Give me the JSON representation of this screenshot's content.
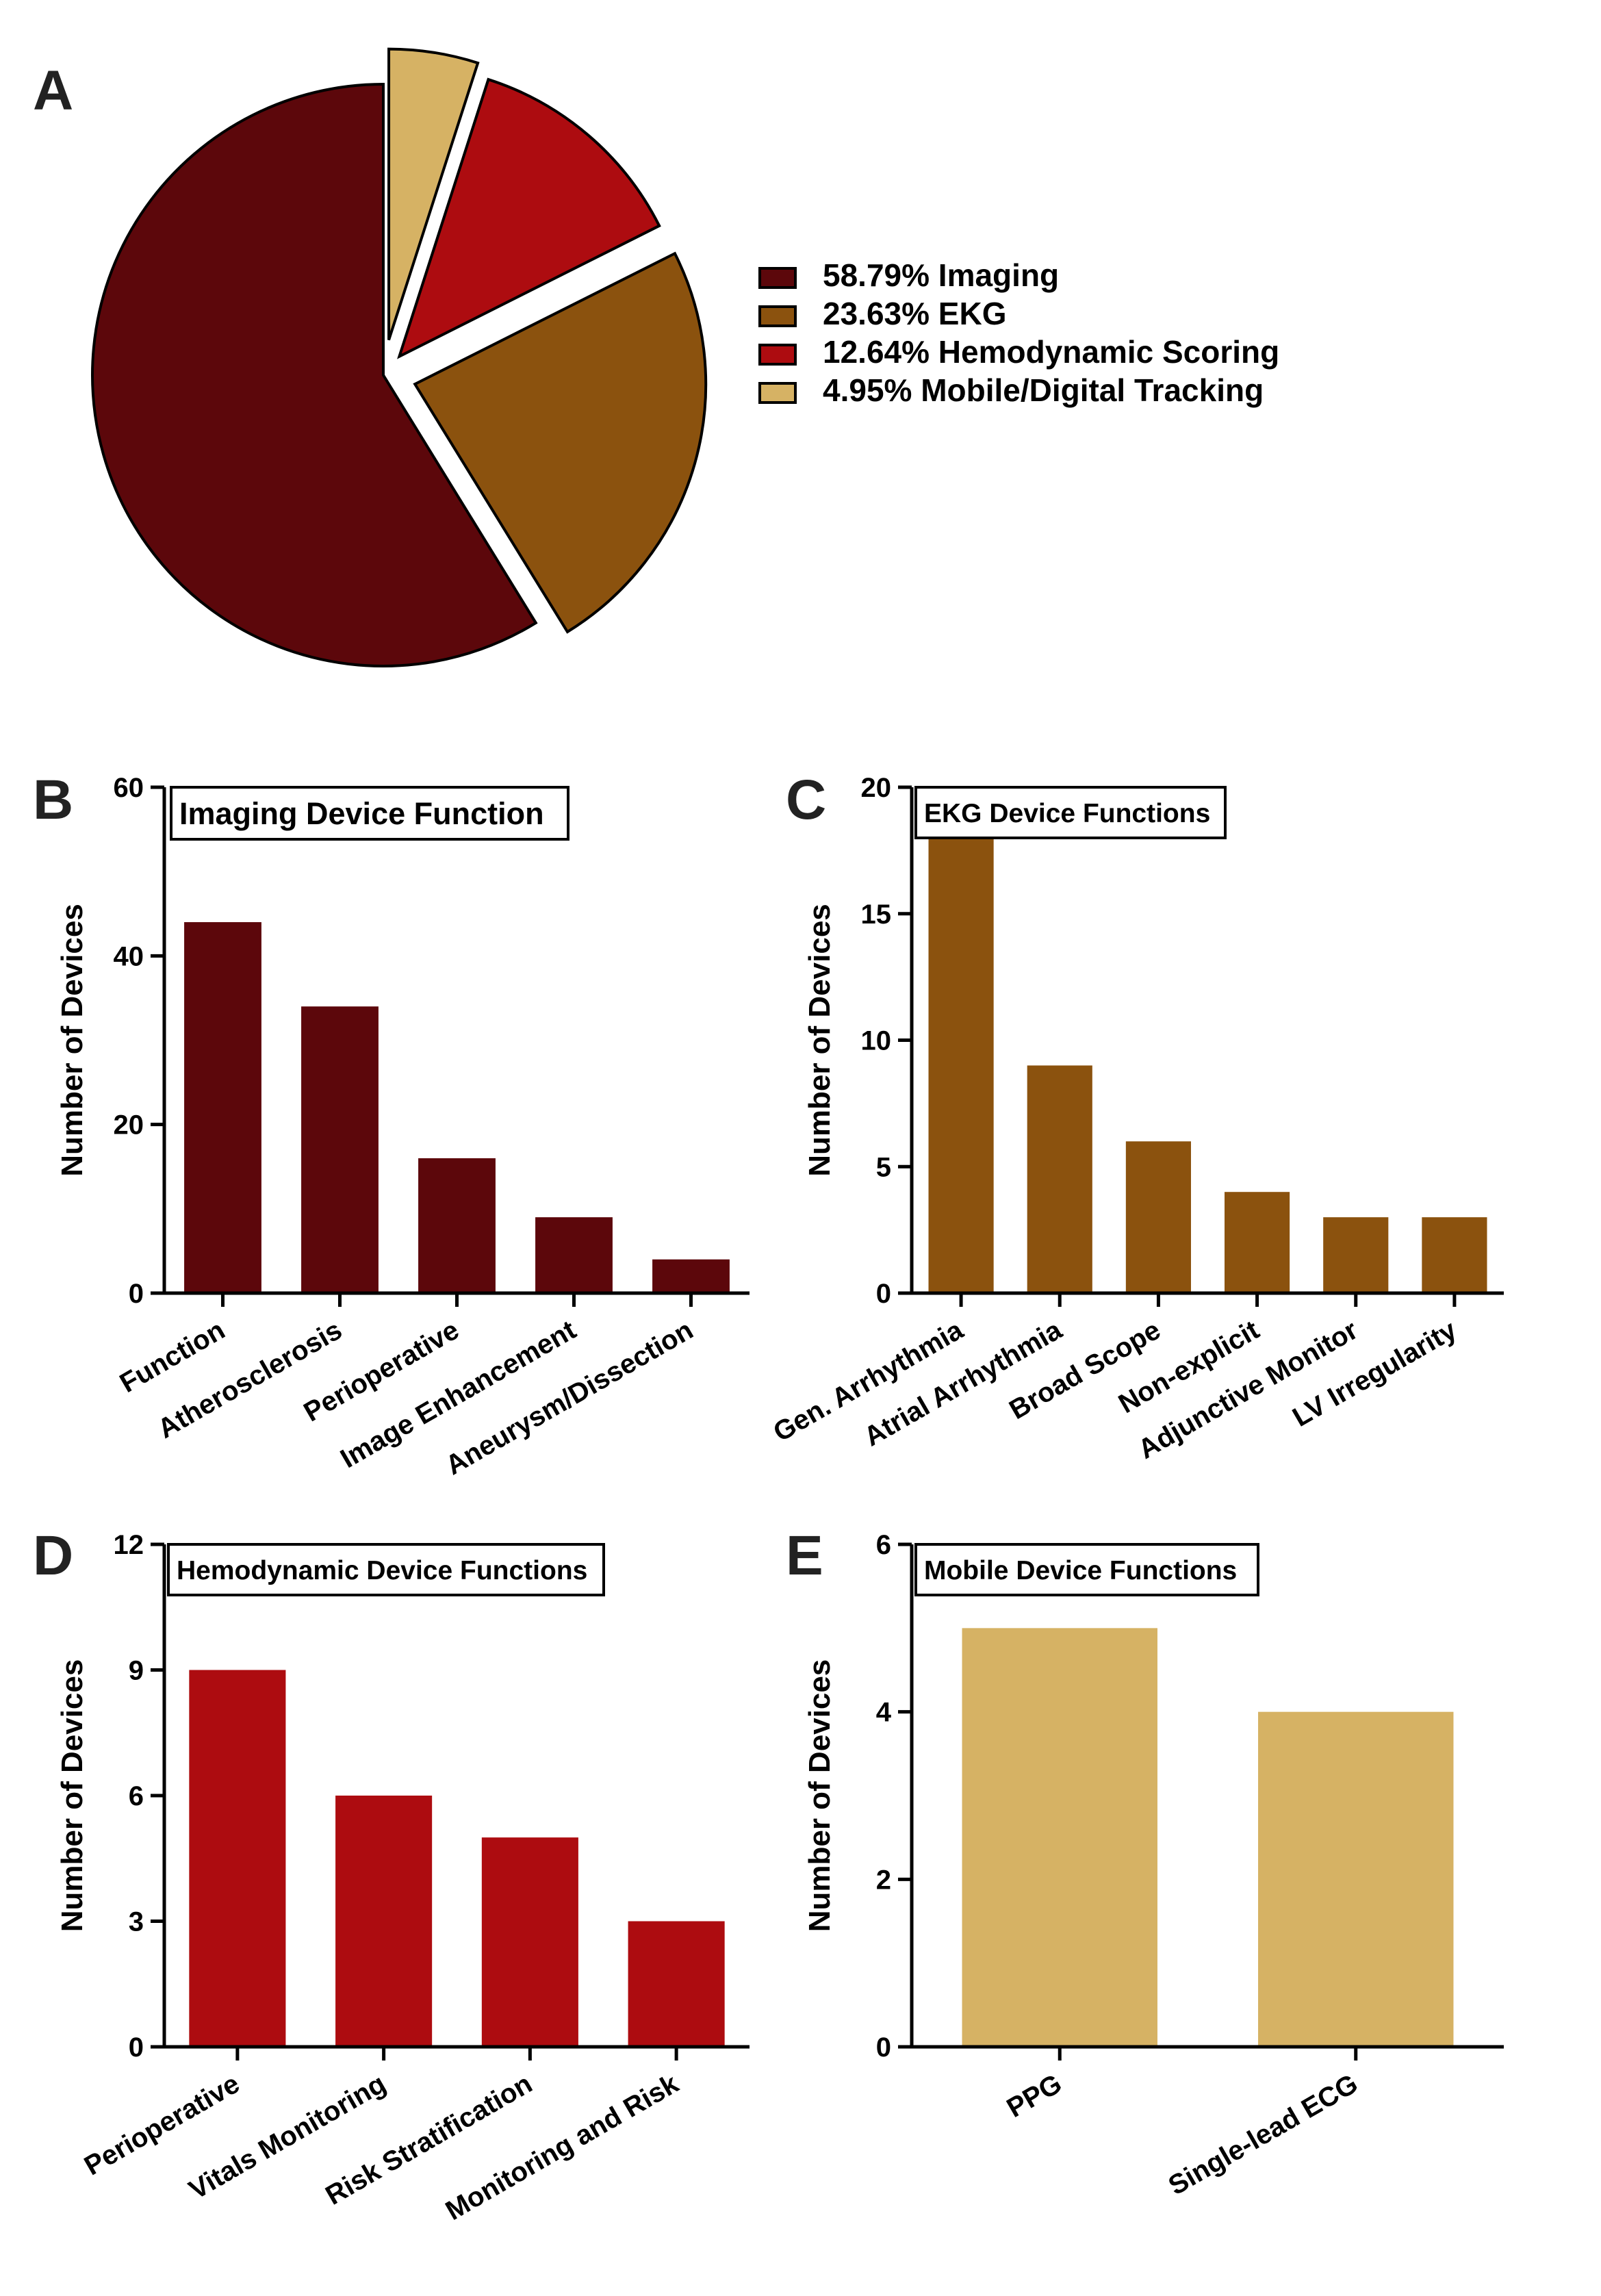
{
  "figure": {
    "panel_letters": [
      "A",
      "B",
      "C",
      "D",
      "E"
    ]
  },
  "chart_data": [
    {
      "panel": "A",
      "type": "pie",
      "title": "",
      "labels": [
        "Imaging",
        "EKG",
        "Hemodynamic Scoring",
        "Mobile/Digital Tracking"
      ],
      "values": [
        58.79,
        23.63,
        12.64,
        4.95
      ],
      "legend": [
        "58.79%  Imaging",
        "23.63%  EKG",
        "12.64%  Hemodynamic Scoring",
        "4.95%  Mobile/Digital Tracking"
      ],
      "colors": [
        "#5c070b",
        "#8b520e",
        "#ad0c10",
        "#d6b264"
      ],
      "legend_position": "right"
    },
    {
      "panel": "B",
      "type": "bar",
      "title": "Imaging Device Function",
      "ylabel": "Number of Devices",
      "xlabel": "",
      "categories": [
        "Function",
        "Atherosclerosis",
        "Perioperative",
        "Image Enhancement",
        "Aneurysm/Dissection"
      ],
      "values": [
        44,
        34,
        16,
        9,
        4
      ],
      "ylim": [
        0,
        60
      ],
      "yticks": [
        0,
        20,
        40,
        60
      ],
      "color": "#5c070b"
    },
    {
      "panel": "C",
      "type": "bar",
      "title": "EKG Device Functions",
      "ylabel": "Number of Devices",
      "xlabel": "",
      "categories": [
        "Gen. Arrhythmia",
        "Atrial Arrhythmia",
        "Broad Scope",
        "Non-explicit",
        "Adjunctive Monitor",
        "LV Irregularity"
      ],
      "values": [
        18,
        9,
        6,
        4,
        3,
        3
      ],
      "ylim": [
        0,
        20
      ],
      "yticks": [
        0,
        5,
        10,
        15,
        20
      ],
      "color": "#8b520e"
    },
    {
      "panel": "D",
      "type": "bar",
      "title": "Hemodynamic Device Functions",
      "ylabel": "Number of Devices",
      "xlabel": "",
      "categories": [
        "Perioperative",
        "Vitals Monitoring",
        "Risk Stratification",
        "Monitoring and Risk"
      ],
      "values": [
        9,
        6,
        5,
        3
      ],
      "ylim": [
        0,
        12
      ],
      "yticks": [
        0,
        3,
        6,
        9,
        12
      ],
      "color": "#ad0c10"
    },
    {
      "panel": "E",
      "type": "bar",
      "title": "Mobile Device Functions",
      "ylabel": "Number of Devices",
      "xlabel": "",
      "categories": [
        "PPG",
        "Single-lead ECG"
      ],
      "values": [
        5,
        4
      ],
      "ylim": [
        0,
        6
      ],
      "yticks": [
        0,
        2,
        4,
        6
      ],
      "color": "#d6b264"
    }
  ]
}
